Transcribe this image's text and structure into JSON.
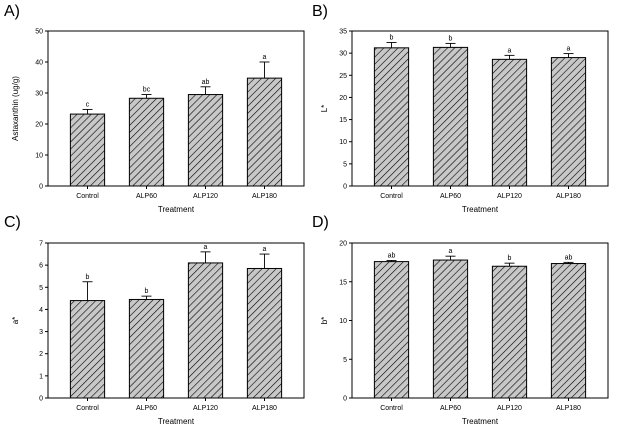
{
  "chart_data": [
    {
      "panel": "A)",
      "type": "bar",
      "categories": [
        "Control",
        "ALP60",
        "ALP120",
        "ALP180"
      ],
      "values": [
        23.2,
        28.3,
        29.5,
        34.8
      ],
      "errors": [
        1.5,
        1.2,
        2.5,
        5.2
      ],
      "significance": [
        "c",
        "bc",
        "ab",
        "a"
      ],
      "xlabel": "Treatment",
      "ylabel": "Astaxanthin (ug/g)",
      "ylim": [
        0,
        50
      ],
      "yticks": [
        0,
        10,
        20,
        30,
        40,
        50
      ]
    },
    {
      "panel": "B)",
      "type": "bar",
      "categories": [
        "Control",
        "ALP60",
        "ALP120",
        "ALP180"
      ],
      "values": [
        31.2,
        31.3,
        28.6,
        29.0
      ],
      "errors": [
        1.2,
        0.9,
        0.9,
        0.9
      ],
      "significance": [
        "b",
        "b",
        "a",
        "a"
      ],
      "xlabel": "Treatment",
      "ylabel": "L*",
      "ylim": [
        0,
        35
      ],
      "yticks": [
        0,
        5,
        10,
        15,
        20,
        25,
        30,
        35
      ]
    },
    {
      "panel": "C)",
      "type": "bar",
      "categories": [
        "Control",
        "ALP60",
        "ALP120",
        "ALP180"
      ],
      "values": [
        4.4,
        4.45,
        6.1,
        5.85
      ],
      "errors": [
        0.85,
        0.15,
        0.5,
        0.65
      ],
      "significance": [
        "b",
        "b",
        "a",
        "a"
      ],
      "xlabel": "Treatment",
      "ylabel": "a*",
      "ylim": [
        0,
        7
      ],
      "yticks": [
        0,
        1,
        2,
        3,
        4,
        5,
        6,
        7
      ]
    },
    {
      "panel": "D)",
      "type": "bar",
      "categories": [
        "Control",
        "ALP60",
        "ALP120",
        "ALP180"
      ],
      "values": [
        17.6,
        17.8,
        17.0,
        17.35
      ],
      "errors": [
        0.15,
        0.5,
        0.4,
        0.15
      ],
      "significance": [
        "ab",
        "a",
        "b",
        "ab"
      ],
      "xlabel": "Treatment",
      "ylabel": "b*",
      "ylim": [
        0,
        20
      ],
      "yticks": [
        0,
        5,
        10,
        15,
        20
      ]
    }
  ],
  "style": {
    "bar_fill": "#c8c8c8",
    "hatch_color": "#000000",
    "axis_color": "#000000"
  }
}
